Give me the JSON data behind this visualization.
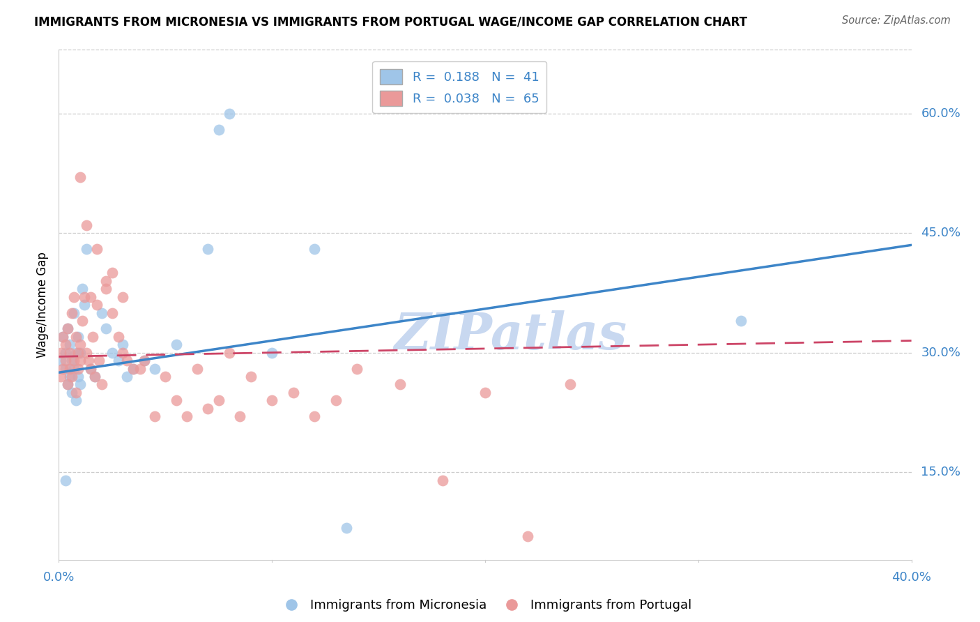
{
  "title": "IMMIGRANTS FROM MICRONESIA VS IMMIGRANTS FROM PORTUGAL WAGE/INCOME GAP CORRELATION CHART",
  "source": "Source: ZipAtlas.com",
  "ylabel": "Wage/Income Gap",
  "ytick_labels": [
    "15.0%",
    "30.0%",
    "45.0%",
    "60.0%"
  ],
  "ytick_values": [
    0.15,
    0.3,
    0.45,
    0.6
  ],
  "xtick_labels": [
    "0.0%",
    "40.0%"
  ],
  "xtick_positions": [
    0.0,
    0.4
  ],
  "xlim": [
    0.0,
    0.4
  ],
  "ylim": [
    0.04,
    0.68
  ],
  "blue_label": "R =  0.188   N =  41",
  "pink_label": "R =  0.038   N =  65",
  "blue_color": "#9fc5e8",
  "pink_color": "#ea9999",
  "trend_blue_color": "#3d85c8",
  "trend_pink_color": "#cc4466",
  "legend_bottom_blue": "Immigrants from Micronesia",
  "legend_bottom_pink": "Immigrants from Portugal",
  "blue_R": 0.188,
  "blue_N": 41,
  "pink_R": 0.038,
  "pink_N": 65,
  "trend_blue_x0": 0.0,
  "trend_blue_y0": 0.275,
  "trend_blue_x1": 0.4,
  "trend_blue_y1": 0.435,
  "trend_pink_x0": 0.0,
  "trend_pink_y0": 0.295,
  "trend_pink_x1": 0.4,
  "trend_pink_y1": 0.315,
  "watermark": "ZIPatlas",
  "watermark_color": "#c8d8f0",
  "background_color": "#ffffff",
  "grid_color": "#cccccc",
  "blue_scatter_x": [
    0.001,
    0.002,
    0.003,
    0.003,
    0.004,
    0.004,
    0.005,
    0.005,
    0.006,
    0.006,
    0.007,
    0.007,
    0.008,
    0.008,
    0.009,
    0.009,
    0.01,
    0.01,
    0.011,
    0.012,
    0.013,
    0.015,
    0.017,
    0.02,
    0.022,
    0.025,
    0.028,
    0.03,
    0.032,
    0.035,
    0.04,
    0.045,
    0.055,
    0.07,
    0.075,
    0.08,
    0.1,
    0.12,
    0.135,
    0.003,
    0.32
  ],
  "blue_scatter_y": [
    0.29,
    0.32,
    0.28,
    0.3,
    0.26,
    0.33,
    0.27,
    0.31,
    0.25,
    0.29,
    0.35,
    0.28,
    0.3,
    0.24,
    0.27,
    0.32,
    0.26,
    0.3,
    0.38,
    0.36,
    0.43,
    0.28,
    0.27,
    0.35,
    0.33,
    0.3,
    0.29,
    0.31,
    0.27,
    0.28,
    0.29,
    0.28,
    0.31,
    0.43,
    0.58,
    0.6,
    0.3,
    0.43,
    0.08,
    0.14,
    0.34
  ],
  "pink_scatter_x": [
    0.001,
    0.001,
    0.002,
    0.002,
    0.003,
    0.003,
    0.004,
    0.004,
    0.005,
    0.005,
    0.006,
    0.006,
    0.007,
    0.007,
    0.008,
    0.008,
    0.009,
    0.009,
    0.01,
    0.01,
    0.01,
    0.011,
    0.012,
    0.013,
    0.013,
    0.014,
    0.015,
    0.015,
    0.016,
    0.017,
    0.018,
    0.018,
    0.019,
    0.02,
    0.022,
    0.022,
    0.025,
    0.025,
    0.028,
    0.03,
    0.03,
    0.032,
    0.035,
    0.038,
    0.04,
    0.045,
    0.05,
    0.055,
    0.06,
    0.065,
    0.07,
    0.075,
    0.08,
    0.085,
    0.09,
    0.1,
    0.11,
    0.12,
    0.13,
    0.14,
    0.16,
    0.18,
    0.2,
    0.22,
    0.24
  ],
  "pink_scatter_y": [
    0.3,
    0.27,
    0.32,
    0.28,
    0.29,
    0.31,
    0.33,
    0.26,
    0.3,
    0.28,
    0.35,
    0.27,
    0.37,
    0.29,
    0.32,
    0.25,
    0.28,
    0.3,
    0.29,
    0.31,
    0.52,
    0.34,
    0.37,
    0.3,
    0.46,
    0.29,
    0.28,
    0.37,
    0.32,
    0.27,
    0.36,
    0.43,
    0.29,
    0.26,
    0.39,
    0.38,
    0.4,
    0.35,
    0.32,
    0.37,
    0.3,
    0.29,
    0.28,
    0.28,
    0.29,
    0.22,
    0.27,
    0.24,
    0.22,
    0.28,
    0.23,
    0.24,
    0.3,
    0.22,
    0.27,
    0.24,
    0.25,
    0.22,
    0.24,
    0.28,
    0.26,
    0.14,
    0.25,
    0.07,
    0.26
  ]
}
